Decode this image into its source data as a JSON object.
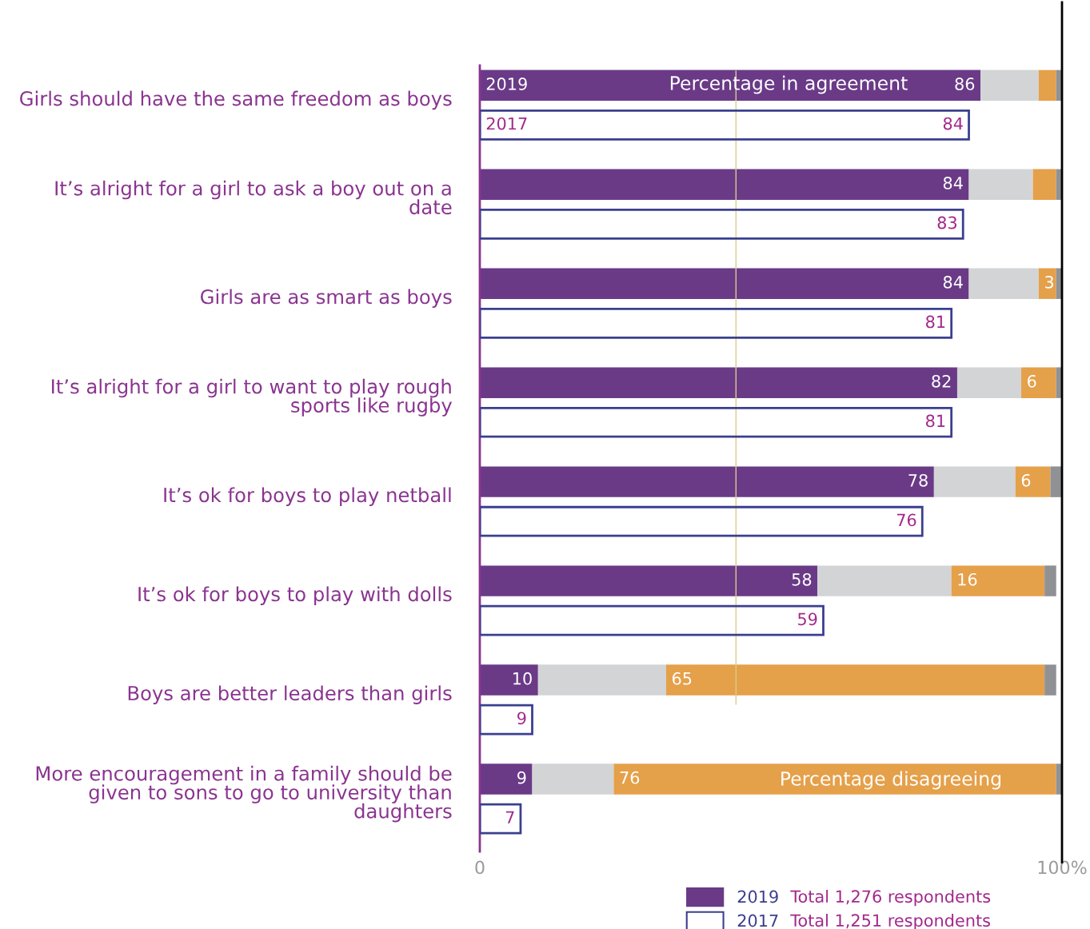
{
  "chart_data": [
    {
      "type": "bar",
      "orientation": "horizontal",
      "stacked": true,
      "categories": [
        "Girls should have the same freedom as boys",
        "It’s alright for a girl to ask a boy out on a date",
        "Girls are as smart as boys",
        "It’s alright for a girl to want to play rough sports like rugby",
        "It’s ok for boys to play netball",
        "It’s ok for boys to play with dolls",
        "Boys are better leaders than girls",
        "More encouragement in a family should be given to sons to go to university than daughters"
      ],
      "series": [
        {
          "name": "2019",
          "color": "#6a3a87",
          "values": [
            86,
            84,
            84,
            82,
            78,
            58,
            10,
            9
          ],
          "value_labels": [
            "86",
            "84",
            "84",
            "82",
            "78",
            "58",
            "10",
            "9"
          ]
        },
        {
          "color": "#d3d4d6",
          "values": [
            10,
            11,
            12,
            11,
            14,
            23,
            22,
            14
          ]
        },
        {
          "color": "#e5a04a",
          "values": [
            3,
            4,
            3,
            6,
            6,
            16,
            65,
            76
          ],
          "value_labels": [
            null,
            null,
            "3",
            "6",
            "6",
            "16",
            "65",
            "76"
          ]
        },
        {
          "color": "#909195",
          "values": [
            1,
            1,
            1,
            1,
            2,
            2,
            2,
            1
          ]
        }
      ],
      "xlim": [
        0,
        100
      ],
      "xticks": [
        0,
        {
          "value": 100,
          "label": "100%"
        }
      ],
      "ref_lines": [
        {
          "axis": "x",
          "value": 44,
          "color": "#d9cc8c"
        },
        {
          "axis": "x",
          "value": 100,
          "color": "#000000"
        }
      ],
      "legend": "bottom",
      "annotations": [
        "Percentage in agreement",
        "Percentage disagreeing",
        "Total 1,276 respondents",
        "Total 1,251 respondents"
      ]
    },
    {
      "type": "bar",
      "orientation": "horizontal",
      "categories": [
        null,
        null,
        null,
        null,
        null,
        null,
        null,
        null
      ],
      "series": [
        {
          "name": "2017",
          "color": "#3b3f8f",
          "values": [
            84,
            83,
            81,
            81,
            76,
            59,
            9,
            7
          ],
          "value_labels": [
            "84",
            "83",
            "81",
            "81",
            "76",
            "59",
            "9",
            "7"
          ]
        }
      ],
      "xlim": [
        0,
        100
      ],
      "legend": "bottom"
    }
  ]
}
